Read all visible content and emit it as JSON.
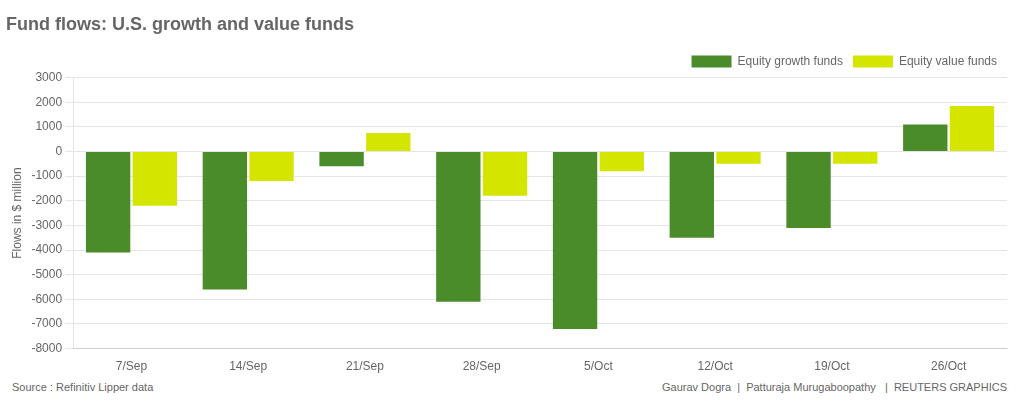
{
  "chart_data": {
    "type": "bar",
    "title": "Fund flows: U.S. growth and value funds",
    "categories": [
      "7/Sep",
      "14/Sep",
      "21/Sep",
      "28/Sep",
      "5/Oct",
      "12/Oct",
      "19/Oct",
      "26/Oct"
    ],
    "series": [
      {
        "name": "Equity growth funds",
        "color": "#4a8c2a",
        "values": [
          -4100,
          -5600,
          -600,
          -6100,
          -7200,
          -3500,
          -3100,
          1100
        ]
      },
      {
        "name": "Equity value funds",
        "color": "#d4e600",
        "values": [
          -2200,
          -1200,
          750,
          -1800,
          -800,
          -500,
          -500,
          1850
        ]
      }
    ],
    "ylabel": "Flows in $ million",
    "ylim": [
      -8000,
      3000
    ],
    "yticks": [
      -8000,
      -7000,
      -6000,
      -5000,
      -4000,
      -3000,
      -2000,
      -1000,
      0,
      1000,
      2000,
      3000
    ],
    "grid": true,
    "legend": "upper right",
    "annotations": [
      "Source : Refinitiv Lipper data",
      "Gaurav Dogra  |  Patturaja Murugaboopathy   |  REUTERS GRAPHICS"
    ]
  }
}
